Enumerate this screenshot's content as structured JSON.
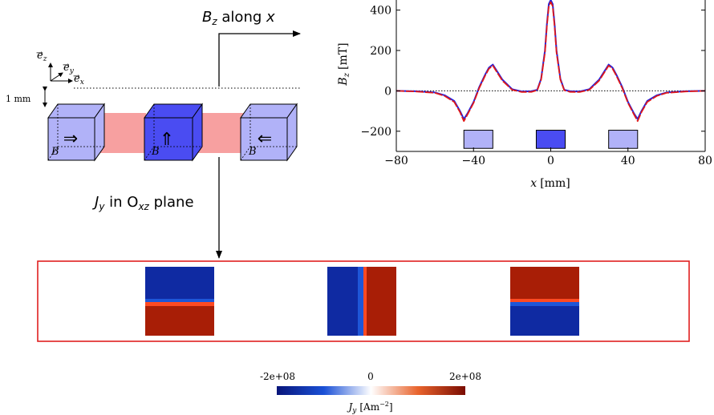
{
  "schematic": {
    "bz_label": "B",
    "bz_sub": "z",
    "bz_along": " along ",
    "bz_x": "x",
    "jy_label": "J",
    "jy_sub": "y",
    "jy_in": " in O",
    "jy_sub2": "xz",
    "jy_plane": " plane",
    "axis_ez": "e",
    "axis_ez_sub": "z",
    "axis_ey": "e",
    "axis_ey_sub": "y",
    "axis_ex": "e",
    "axis_ex_sub": "x",
    "gap_label": "1 mm",
    "magnet_field_label": "B",
    "magnets": [
      {
        "direction": "left-pointing",
        "glyph": "⇒",
        "color": "#b1b2f8"
      },
      {
        "direction": "up",
        "glyph": "⇑",
        "color": "#4a4cf2"
      },
      {
        "direction": "right-pointing",
        "glyph": "⇐",
        "color": "#b1b2f8"
      }
    ],
    "spacer_color": "#f7a0a0"
  },
  "chart_data": {
    "type": "line",
    "xlabel": "x",
    "xlabel_unit": "[mm]",
    "ylabel": "B",
    "ylabel_sub": "z",
    "ylabel_unit": "[mT]",
    "xlim": [
      -80,
      80
    ],
    "ylim": [
      -300,
      450
    ],
    "xticks": [
      -80,
      -40,
      0,
      40,
      80
    ],
    "xtick_labels": [
      "−80",
      "−40",
      "0",
      "40",
      "80"
    ],
    "yticks": [
      -200,
      0,
      200,
      400
    ],
    "ytick_labels": [
      "−200",
      "0",
      "200",
      "400"
    ],
    "zero_line": true,
    "series": [
      {
        "color": "#2020e0",
        "x": [
          -80,
          -70,
          -60,
          -55,
          -50,
          -47,
          -45,
          -43,
          -40,
          -37,
          -34,
          -32,
          -30,
          -28,
          -25,
          -20,
          -15,
          -10,
          -7,
          -5,
          -3,
          -2,
          -1,
          0,
          1,
          2,
          3,
          5,
          7,
          10,
          15,
          20,
          25,
          28,
          30,
          32,
          34,
          37,
          40,
          43,
          45,
          47,
          50,
          55,
          60,
          70,
          80
        ],
        "y": [
          0,
          -2,
          -8,
          -22,
          -50,
          -100,
          -140,
          -110,
          -55,
          20,
          80,
          115,
          130,
          100,
          55,
          8,
          -3,
          -2,
          5,
          60,
          200,
          330,
          430,
          450,
          430,
          330,
          200,
          60,
          5,
          -2,
          -3,
          8,
          55,
          100,
          130,
          115,
          80,
          20,
          -55,
          -110,
          -140,
          -100,
          -50,
          -22,
          -8,
          -2,
          0
        ]
      },
      {
        "color": "#e01818",
        "x": [
          -80,
          -70,
          -60,
          -55,
          -50,
          -47,
          -45,
          -43,
          -40,
          -37,
          -34,
          -32,
          -30,
          -28,
          -25,
          -20,
          -15,
          -10,
          -7,
          -5,
          -3,
          -2,
          -1,
          0,
          1,
          2,
          3,
          5,
          7,
          10,
          15,
          20,
          25,
          28,
          30,
          32,
          34,
          37,
          40,
          43,
          45,
          47,
          50,
          55,
          60,
          70,
          80
        ],
        "y": [
          0,
          -3,
          -10,
          -25,
          -55,
          -105,
          -150,
          -115,
          -60,
          15,
          75,
          110,
          125,
          95,
          50,
          5,
          -6,
          -5,
          3,
          55,
          190,
          320,
          420,
          440,
          420,
          320,
          190,
          55,
          3,
          -5,
          -6,
          5,
          50,
          95,
          125,
          110,
          75,
          15,
          -60,
          -115,
          -150,
          -105,
          -55,
          -25,
          -10,
          -3,
          0
        ]
      }
    ],
    "magnet_markers": [
      {
        "x0": -45,
        "x1": -30,
        "color": "#b1b2f8"
      },
      {
        "x0": -7.5,
        "x1": 7.5,
        "color": "#4a4cf2"
      },
      {
        "x0": 30,
        "x1": 45,
        "color": "#b1b2f8"
      }
    ],
    "marker_band": [
      -285,
      -195
    ]
  },
  "heatmap": {
    "panels": [
      {
        "layout": "horizontal",
        "bands": [
          "#0f2aa2",
          "#1e56d8",
          "#ff4a22",
          "#a81e06"
        ]
      },
      {
        "layout": "vertical",
        "bands": [
          "#0f2aa2",
          "#1e56d8",
          "#ff4a22",
          "#a81e06"
        ]
      },
      {
        "layout": "horizontal",
        "bands": [
          "#a81e06",
          "#ff4a22",
          "#1e56d8",
          "#0f2aa2"
        ]
      }
    ]
  },
  "colorbar": {
    "min_label": "-2e+08",
    "mid_label": "0",
    "max_label": "2e+08",
    "label": "J",
    "label_sub": "y",
    "label_unit": "[Am",
    "label_exp": "−2",
    "label_close": "]",
    "stops": [
      "#08157a",
      "#1a50d6",
      "#ffffff",
      "#e8632c",
      "#7a0c02"
    ]
  },
  "colors": {
    "frame": "#e02020",
    "arrow": "#000000"
  }
}
